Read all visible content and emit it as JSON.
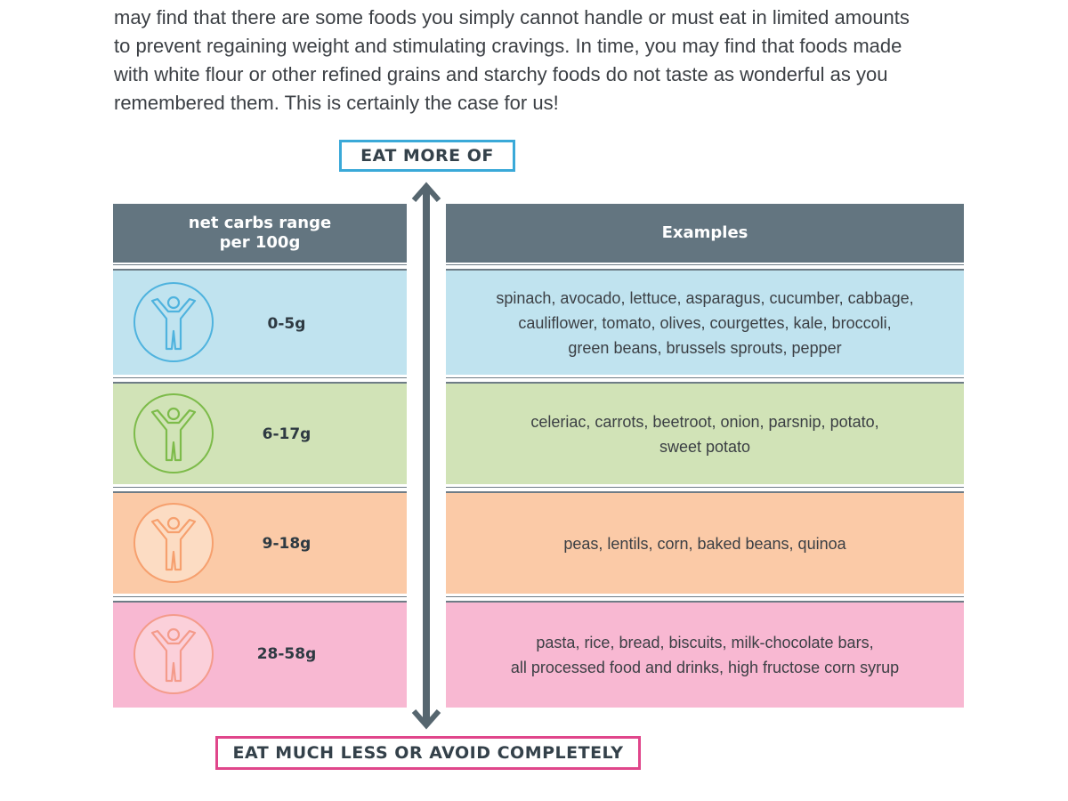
{
  "intro": {
    "lines": [
      "may find that there are some foods you simply cannot handle or must eat in limited amounts",
      "to prevent regaining weight and stimulating cravings. In time, you may find that foods made",
      "with white flour or other refined grains and starchy foods do not taste as wonderful as you",
      "remembered them. This is certainly the case for us!"
    ]
  },
  "labels": {
    "top": "EAT MORE OF",
    "bottom": "EAT MUCH LESS OR AVOID COMPLETELY"
  },
  "table": {
    "header_left_lines": [
      "net carbs range",
      "per 100g"
    ],
    "header_right": "Examples",
    "rows": [
      {
        "range": "0-5g",
        "bg": "#c0e3ef",
        "icon_color": "#4fb3de",
        "icon_bg": "#c0e3ef",
        "examples": [
          "spinach, avocado, lettuce, asparagus, cucumber, cabbage,",
          "cauliflower, tomato, olives, courgettes, kale, broccoli,",
          "green beans, brussels sprouts, pepper"
        ]
      },
      {
        "range": "6-17g",
        "bg": "#d1e3b7",
        "icon_color": "#7dbb4a",
        "icon_bg": "#d1e3b7",
        "examples": [
          "celeriac, carrots, beetroot, onion, parsnip, potato,",
          "sweet potato"
        ]
      },
      {
        "range": "9-18g",
        "bg": "#fbcaa7",
        "icon_color": "#f6a06e",
        "icon_bg": "#fcdcc3",
        "examples": [
          "peas, lentils, corn, baked beans, quinoa"
        ]
      },
      {
        "range": "28-58g",
        "bg": "#f8b8d2",
        "icon_color": "#f49b8b",
        "icon_bg": "#fbd0da",
        "examples": [
          "pasta, rice, bread, biscuits, milk-chocolate bars,",
          "all processed food and drinks, high fructose corn syrup"
        ]
      }
    ]
  },
  "colors": {
    "header": "#637580",
    "arrow": "#56666f",
    "top_label_border": "#3aa9d8",
    "bottom_label_border": "#e0468b"
  },
  "icons": {
    "row_icon": "person-arms-raised-icon",
    "arrow": "double-headed-vertical-arrow-icon"
  }
}
